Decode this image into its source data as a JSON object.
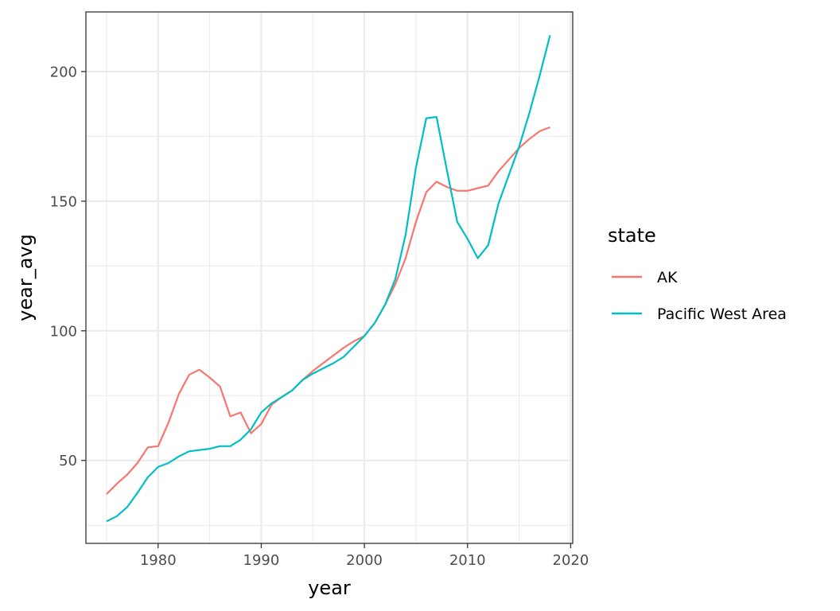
{
  "chart_data": {
    "type": "line",
    "title": "",
    "xlabel": "year",
    "ylabel": "year_avg",
    "xlim": [
      1973,
      2020.2
    ],
    "ylim": [
      18,
      223
    ],
    "x_ticks": [
      1980,
      1990,
      2000,
      2010,
      2020
    ],
    "y_ticks": [
      50,
      100,
      150,
      200
    ],
    "grid": true,
    "legend": {
      "title": "state",
      "position": "right"
    },
    "x": [
      1975,
      1976,
      1977,
      1978,
      1979,
      1980,
      1981,
      1982,
      1983,
      1984,
      1985,
      1986,
      1987,
      1988,
      1989,
      1990,
      1991,
      1992,
      1993,
      1994,
      1995,
      1996,
      1997,
      1998,
      1999,
      2000,
      2001,
      2002,
      2003,
      2004,
      2005,
      2006,
      2007,
      2008,
      2009,
      2010,
      2011,
      2012,
      2013,
      2014,
      2015,
      2016,
      2017,
      2018
    ],
    "series": [
      {
        "name": "AK",
        "color": "#F8766D",
        "values": [
          37,
          41,
          44.5,
          49,
          55,
          55.5,
          64.5,
          75.5,
          83,
          85,
          82,
          78.5,
          67,
          68.5,
          60.5,
          64,
          71.5,
          74.5,
          77,
          81,
          84.5,
          87.5,
          90.5,
          93.5,
          96,
          98,
          103,
          110,
          118,
          128,
          142,
          153.5,
          157.5,
          155.5,
          154,
          154,
          155,
          156,
          161.5,
          166,
          170.5,
          174,
          177,
          178.5
        ]
      },
      {
        "name": "Pacific West Area",
        "color": "#00BFC4",
        "values": [
          26.5,
          28.5,
          32,
          37.5,
          43.5,
          47.5,
          49,
          51.5,
          53.5,
          54,
          54.5,
          55.5,
          55.5,
          58,
          62,
          68.5,
          72,
          74.5,
          77,
          81,
          83.5,
          85.5,
          87.5,
          90,
          94,
          98,
          103,
          110,
          120,
          137,
          163,
          182,
          182.5,
          162,
          142,
          135.5,
          128,
          133,
          149,
          160,
          171,
          184,
          198.5,
          214
        ]
      }
    ]
  }
}
